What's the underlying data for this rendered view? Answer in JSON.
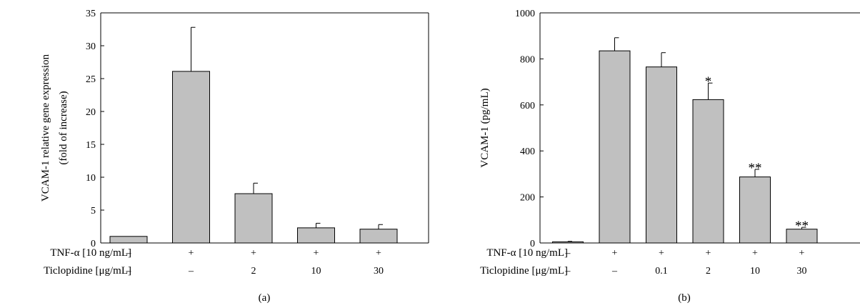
{
  "chart_data": [
    {
      "type": "bar",
      "caption": "(a)",
      "ylabel_lines": [
        "VCAM-1 relative gene expression",
        "(fold of increase)"
      ],
      "ylim": [
        0,
        35
      ],
      "yticks": [
        0,
        5,
        10,
        15,
        20,
        25,
        30,
        35
      ],
      "values": [
        1.0,
        26.1,
        7.5,
        2.3,
        2.1
      ],
      "errors": [
        0,
        6.7,
        1.6,
        0.7,
        0.7
      ],
      "significance": [
        "",
        "",
        "",
        "",
        ""
      ],
      "conditions": [
        {
          "label": "TNF-α [10 ng/mL]",
          "values": [
            "–",
            "+",
            "+",
            "+",
            "+"
          ]
        },
        {
          "label": "Ticlopidine [μg/mL]",
          "values": [
            "–",
            "–",
            "2",
            "10",
            "30"
          ]
        }
      ],
      "bar_color": "#c0c0c0"
    },
    {
      "type": "bar",
      "caption": "(b)",
      "ylabel_lines": [
        "VCAM-1 (pg/mL)"
      ],
      "ylim": [
        0,
        1000
      ],
      "yticks": [
        0,
        200,
        400,
        600,
        800,
        1000
      ],
      "values": [
        5,
        835,
        765,
        623,
        287,
        60
      ],
      "errors": [
        2,
        57,
        62,
        72,
        33,
        8
      ],
      "significance": [
        "",
        "",
        "",
        "*",
        "**",
        "**"
      ],
      "conditions": [
        {
          "label": "TNF-α [10 ng/mL]",
          "values": [
            "–",
            "+",
            "+",
            "+",
            "+",
            "+"
          ]
        },
        {
          "label": "Ticlopidine [μg/mL]",
          "values": [
            "–",
            "–",
            "0.1",
            "2",
            "10",
            "30"
          ]
        }
      ],
      "bar_color": "#c0c0c0"
    }
  ]
}
